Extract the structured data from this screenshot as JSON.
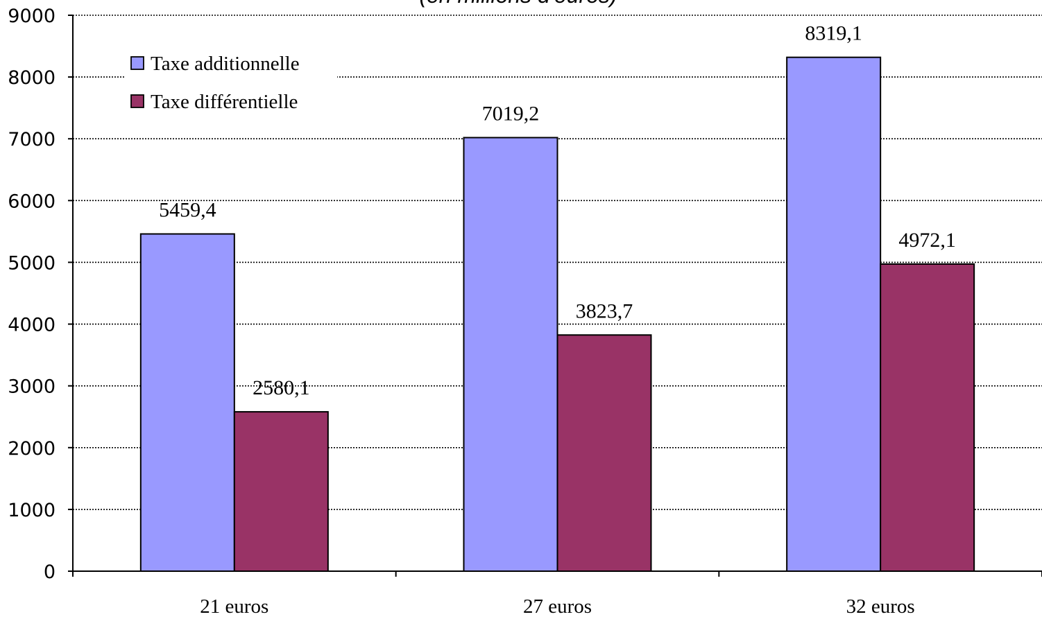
{
  "chart_data": {
    "type": "bar",
    "subtitle": "(en millions d'euros)",
    "categories": [
      "21 euros",
      "27 euros",
      "32 euros"
    ],
    "series": [
      {
        "name": "Taxe additionnelle",
        "color": "#9999ff",
        "values": [
          5459.4,
          7019.2,
          8319.1
        ],
        "labels": [
          "5459,4",
          "7019,2",
          "8319,1"
        ]
      },
      {
        "name": "Taxe différentielle",
        "color": "#993366",
        "values": [
          2580.1,
          3823.7,
          4972.1
        ],
        "labels": [
          "2580,1",
          "3823,7",
          "4972,1"
        ]
      }
    ],
    "ylim": [
      0,
      9000
    ],
    "yticks": [
      "0",
      "1000",
      "2000",
      "3000",
      "4000",
      "5000",
      "6000",
      "7000",
      "8000",
      "9000"
    ],
    "grid": true,
    "legend_position": "top-left"
  }
}
